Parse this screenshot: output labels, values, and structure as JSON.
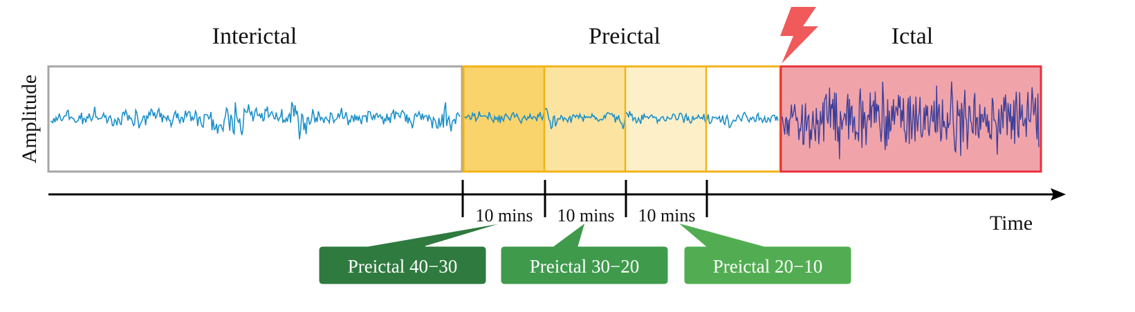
{
  "phases": {
    "interictal": "Interictal",
    "preictal": "Preictal",
    "ictal": "Ictal"
  },
  "axes": {
    "ylabel": "Amplitude",
    "xlabel": "Time"
  },
  "intervals": [
    "10 mins",
    "10 mins",
    "10 mins"
  ],
  "callouts": [
    "Preictal 40−30",
    "Preictal 30−20",
    "Preictal 20−10"
  ],
  "colors": {
    "signal": "#1b8fc9",
    "ictal_signal": "#3b3f9a",
    "interictal_border": "#a6a6a6",
    "preictal_border": "#f2b318",
    "segment_fill_1": "#f9d36b",
    "segment_fill_2": "#fce4a0",
    "segment_fill_3": "#fdf0c9",
    "ictal_fill": "#f0a4aa",
    "ictal_border": "#e8303a",
    "lightning": "#f05a5a",
    "callout_1": "#2f7a3f",
    "callout_2": "#3f9a4c",
    "callout_3": "#52ad52"
  },
  "icons": {
    "onset": "lightning-bolt-icon"
  }
}
